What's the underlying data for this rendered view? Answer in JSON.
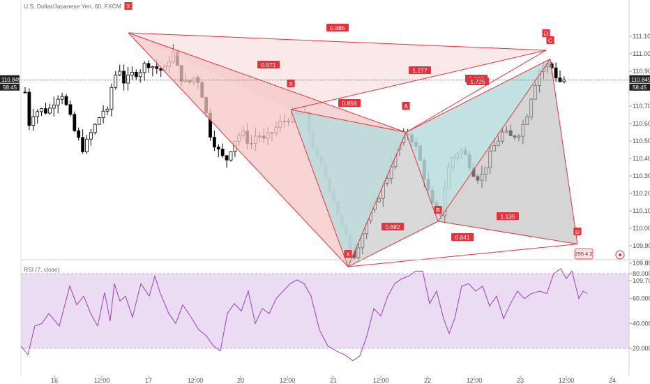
{
  "chart_data": [
    {
      "type": "candlestick",
      "title": "U.S. Dollar/Japanese Yen, 60, FXCM",
      "ylim": [
        109.7,
        111.2
      ],
      "y_ticks": [
        "111.100",
        "111.000",
        "110.900",
        "110.800",
        "110.700",
        "110.600",
        "110.500",
        "110.400",
        "110.300",
        "110.200",
        "110.100",
        "110.000",
        "109.900",
        "109.800",
        "109.700"
      ],
      "x_ticks": [
        "16",
        "12:00",
        "17",
        "12:00",
        "20",
        "12:00",
        "21",
        "12:00",
        "22",
        "12:00",
        "23",
        "12:00",
        "24"
      ],
      "last_price": "110.849",
      "countdown": "58:45",
      "harmonic_points": [
        {
          "label": "X",
          "price": 111.12
        },
        {
          "label": "X",
          "price": 110.68
        },
        {
          "label": "A",
          "price": 110.55
        },
        {
          "label": "X",
          "price": 109.78
        },
        {
          "label": "B",
          "price": 110.04
        },
        {
          "label": "C",
          "price": 110.97
        },
        {
          "label": "D",
          "price": 111.02
        },
        {
          "label": "D",
          "price": 109.91
        }
      ],
      "ratios": [
        "0.885",
        "0.571",
        "1.277",
        "0.858",
        "1.809",
        "1.725",
        "0.682",
        "1.135",
        "0.841"
      ],
      "corner_badge": "296 4 2"
    },
    {
      "type": "line",
      "title": "RSI (7, close)",
      "ylim": [
        10,
        90
      ],
      "y_ticks": [
        "80.0000",
        "60.0000",
        "40.0000",
        "20.0000"
      ],
      "band": [
        20,
        80
      ]
    }
  ],
  "colors": {
    "bull": "#ffffff",
    "bear": "#000000",
    "pattern_red": "#e8323a",
    "pattern_fill": "#f4c7c7",
    "teal_fill": "#b7dcda",
    "gray_fill": "#b9b9b9",
    "rsi_line": "#9b3fb0",
    "rsi_band": "#e9dcf3"
  }
}
